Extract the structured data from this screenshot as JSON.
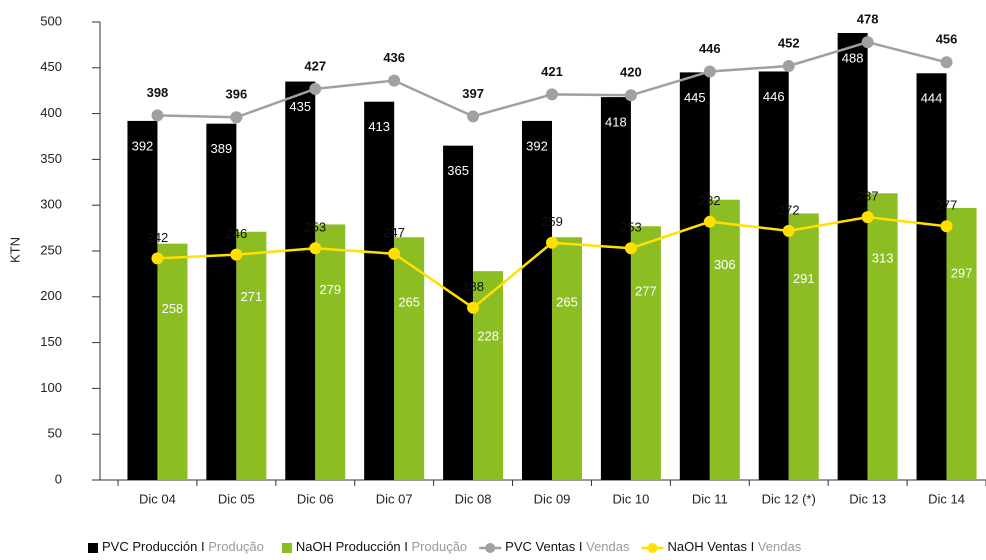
{
  "chart_data": {
    "type": "bar_line",
    "y_axis_label": "KTN",
    "categories": [
      "Dic 04",
      "Dic 05",
      "Dic 06",
      "Dic 07",
      "Dic 08",
      "Dic 09",
      "Dic 10",
      "Dic 11",
      "Dic 12 (*)",
      "Dic 13",
      "Dic 14"
    ],
    "ylim": [
      0,
      500
    ],
    "yticks": [
      0,
      50,
      100,
      150,
      200,
      250,
      300,
      350,
      400,
      450,
      500
    ],
    "grid": false,
    "series": [
      {
        "name": "PVC Producción I",
        "legend_suffix": "Produção",
        "kind": "bar",
        "color": "#000000",
        "values": [
          392,
          389,
          435,
          413,
          365,
          392,
          418,
          445,
          446,
          488,
          444
        ]
      },
      {
        "name": "NaOH Producción I",
        "legend_suffix": "Produção",
        "kind": "bar",
        "color": "#8cbd22",
        "values": [
          258,
          271,
          279,
          265,
          228,
          265,
          277,
          306,
          291,
          313,
          297
        ]
      },
      {
        "name": "PVC Ventas I",
        "legend_suffix": "Vendas",
        "kind": "line",
        "color": "#a0a0a0",
        "values": [
          398,
          396,
          427,
          436,
          397,
          421,
          420,
          446,
          452,
          478,
          456
        ]
      },
      {
        "name": "NaOH Ventas I",
        "legend_suffix": "Vendas",
        "kind": "line",
        "color": "#ffe000",
        "values": [
          242,
          246,
          253,
          247,
          188,
          259,
          253,
          282,
          272,
          287,
          277
        ]
      }
    ],
    "legend": "bottom"
  }
}
